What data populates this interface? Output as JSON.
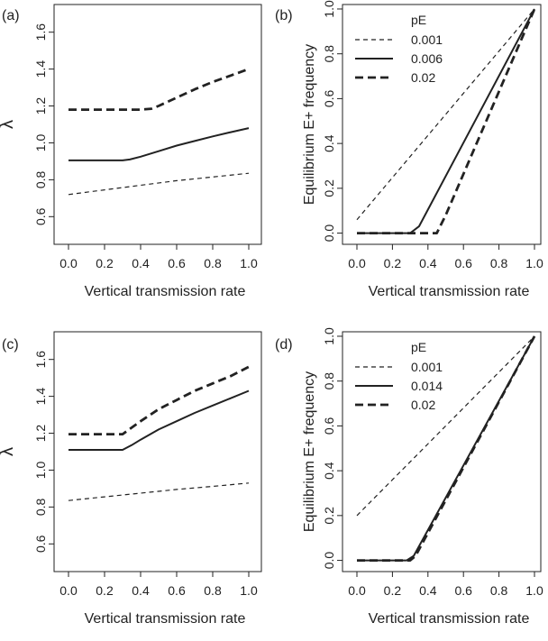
{
  "chart_data": [
    {
      "panel_label": "(a)",
      "type": "line",
      "xlabel": "Vertical transmission rate",
      "ylabel": "λ",
      "xlim": [
        0,
        1
      ],
      "ylim": [
        0.45,
        1.75
      ],
      "xticks": [
        "0.0",
        "0.2",
        "0.4",
        "0.6",
        "0.8",
        "1.0"
      ],
      "yticks": [
        "0.6",
        "0.8",
        "1.0",
        "1.2",
        "1.4",
        "1.6"
      ],
      "legend": null,
      "series": [
        {
          "style": "thin-dashed",
          "x": [
            0,
            0.2,
            0.4,
            0.6,
            0.8,
            1.0
          ],
          "y": [
            0.72,
            0.745,
            0.77,
            0.795,
            0.815,
            0.835
          ]
        },
        {
          "style": "solid",
          "x": [
            0,
            0.1,
            0.2,
            0.3,
            0.34,
            0.4,
            0.5,
            0.6,
            0.7,
            0.8,
            0.9,
            1.0
          ],
          "y": [
            0.905,
            0.905,
            0.905,
            0.905,
            0.91,
            0.925,
            0.955,
            0.985,
            1.01,
            1.035,
            1.058,
            1.08
          ]
        },
        {
          "style": "thick-dashed",
          "x": [
            0,
            0.1,
            0.2,
            0.3,
            0.4,
            0.46,
            0.5,
            0.6,
            0.7,
            0.8,
            0.9,
            1.0
          ],
          "y": [
            1.18,
            1.18,
            1.18,
            1.18,
            1.18,
            1.185,
            1.2,
            1.245,
            1.29,
            1.33,
            1.365,
            1.4
          ]
        }
      ]
    },
    {
      "panel_label": "(b)",
      "type": "line",
      "xlabel": "Vertical transmission rate",
      "ylabel": "Equilibrium E+ frequency",
      "xlim": [
        0,
        1
      ],
      "ylim": [
        -0.05,
        1.02
      ],
      "xticks": [
        "0.0",
        "0.2",
        "0.4",
        "0.6",
        "0.8",
        "1.0"
      ],
      "yticks": [
        "0.0",
        "0.2",
        "0.4",
        "0.6",
        "0.8",
        "1.0"
      ],
      "legend": {
        "title": "pE",
        "placement": "top-left",
        "entries": [
          "0.001",
          "0.006",
          "0.02"
        ]
      },
      "series": [
        {
          "name": "0.001",
          "style": "thin-dashed",
          "x": [
            0,
            1.0
          ],
          "y": [
            0.06,
            1.0
          ]
        },
        {
          "name": "0.006",
          "style": "solid",
          "x": [
            0,
            0.3,
            0.35,
            1.0
          ],
          "y": [
            0.0,
            0.0,
            0.03,
            1.0
          ]
        },
        {
          "name": "0.02",
          "style": "thick-dashed",
          "x": [
            0,
            0.45,
            0.5,
            1.0
          ],
          "y": [
            0.0,
            0.0,
            0.08,
            1.0
          ]
        }
      ]
    },
    {
      "panel_label": "(c)",
      "type": "line",
      "xlabel": "Vertical transmission rate",
      "ylabel": "λ",
      "xlim": [
        0,
        1
      ],
      "ylim": [
        0.45,
        1.75
      ],
      "xticks": [
        "0.0",
        "0.2",
        "0.4",
        "0.6",
        "0.8",
        "1.0"
      ],
      "yticks": [
        "0.6",
        "0.8",
        "1.0",
        "1.2",
        "1.4",
        "1.6"
      ],
      "legend": null,
      "series": [
        {
          "style": "thin-dashed",
          "x": [
            0,
            0.2,
            0.4,
            0.6,
            0.8,
            1.0
          ],
          "y": [
            0.835,
            0.855,
            0.875,
            0.895,
            0.912,
            0.93
          ]
        },
        {
          "style": "solid",
          "x": [
            0,
            0.1,
            0.2,
            0.3,
            0.35,
            0.4,
            0.5,
            0.6,
            0.7,
            0.8,
            0.9,
            1.0
          ],
          "y": [
            1.11,
            1.11,
            1.11,
            1.11,
            1.135,
            1.165,
            1.22,
            1.265,
            1.31,
            1.35,
            1.39,
            1.43
          ]
        },
        {
          "style": "thick-dashed",
          "x": [
            0,
            0.1,
            0.2,
            0.3,
            0.35,
            0.4,
            0.5,
            0.6,
            0.7,
            0.8,
            0.9,
            1.0
          ],
          "y": [
            1.195,
            1.195,
            1.195,
            1.195,
            1.23,
            1.265,
            1.33,
            1.38,
            1.43,
            1.47,
            1.51,
            1.56
          ]
        }
      ]
    },
    {
      "panel_label": "(d)",
      "type": "line",
      "xlabel": "Vertical transmission rate",
      "ylabel": "Equilibrium E+ frequency",
      "xlim": [
        0,
        1
      ],
      "ylim": [
        -0.05,
        1.02
      ],
      "xticks": [
        "0.0",
        "0.2",
        "0.4",
        "0.6",
        "0.8",
        "1.0"
      ],
      "yticks": [
        "0.0",
        "0.2",
        "0.4",
        "0.6",
        "0.8",
        "1.0"
      ],
      "legend": {
        "title": "pE",
        "placement": "top-left",
        "entries": [
          "0.001",
          "0.014",
          "0.02"
        ]
      },
      "series": [
        {
          "name": "0.001",
          "style": "thin-dashed",
          "x": [
            0,
            1.0
          ],
          "y": [
            0.2,
            1.0
          ]
        },
        {
          "name": "0.014",
          "style": "solid",
          "x": [
            0,
            0.28,
            0.32,
            1.0
          ],
          "y": [
            0.0,
            0.0,
            0.02,
            1.0
          ]
        },
        {
          "name": "0.02",
          "style": "thick-dashed",
          "x": [
            0,
            0.3,
            0.33,
            1.0
          ],
          "y": [
            0.0,
            0.0,
            0.02,
            1.0
          ]
        }
      ]
    }
  ]
}
